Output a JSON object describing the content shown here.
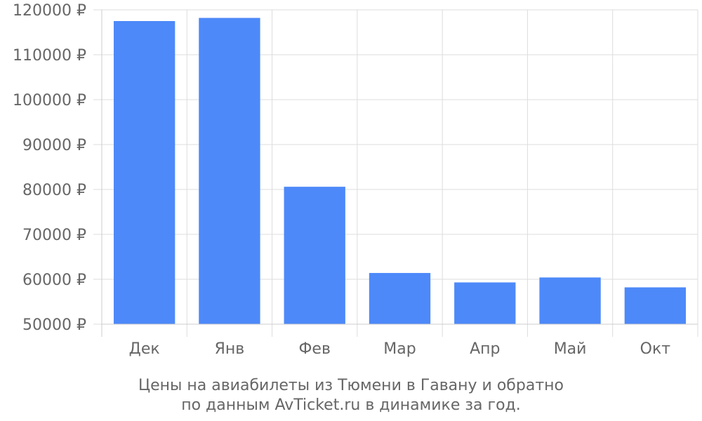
{
  "chart_data": {
    "type": "bar",
    "categories": [
      "Дек",
      "Янв",
      "Фев",
      "Мар",
      "Апр",
      "Май",
      "Окт"
    ],
    "values": [
      117500,
      118200,
      80600,
      61400,
      59300,
      60400,
      58200
    ],
    "y_ticks": [
      "50000 ₽",
      "60000 ₽",
      "70000 ₽",
      "80000 ₽",
      "90000 ₽",
      "100000 ₽",
      "110000 ₽",
      "120000 ₽"
    ],
    "ylim": [
      50000,
      120000
    ],
    "grid": true,
    "bar_color": "#4d89f9",
    "caption": {
      "line1": "Цены на авиабилеты из Тюмени в Гавану и обратно",
      "line2": "по данным AvTicket.ru в динамике за год."
    }
  }
}
